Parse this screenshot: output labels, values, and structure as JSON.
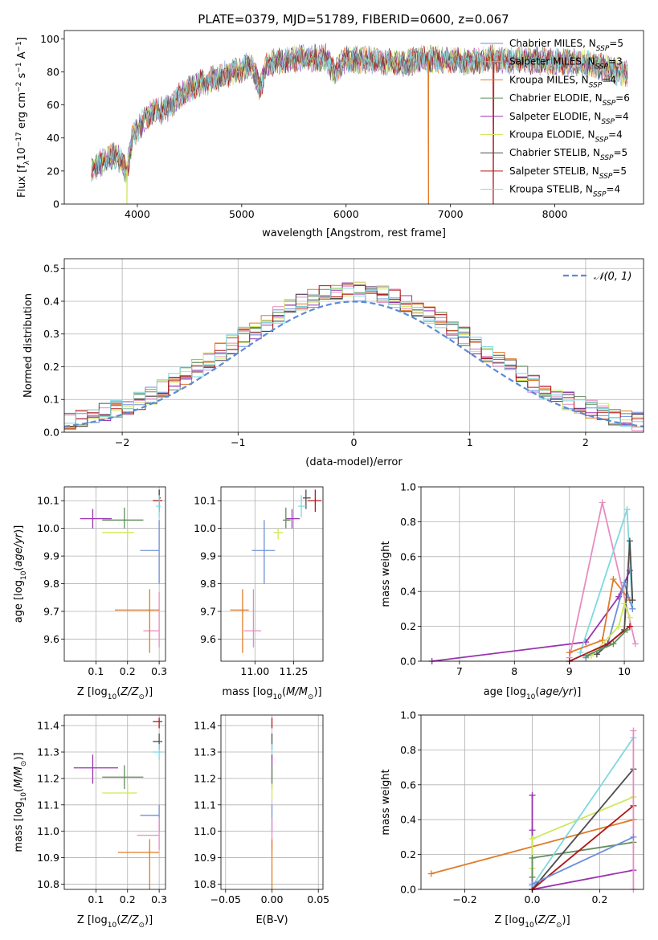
{
  "figure": {
    "title": "PLATE=0379, MJD=51789, FIBERID=0600, z=0.067"
  },
  "colors": {
    "Chabrier MILES": "#6e8fd8",
    "Salpeter MILES": "#e88cc0",
    "Kroupa MILES": "#e07b28",
    "Chabrier ELODIE": "#5f8f5a",
    "Salpeter ELODIE": "#9a33b0",
    "Kroupa ELODIE": "#cfe85a",
    "Chabrier STELIB": "#4d4d4d",
    "Salpeter STELIB": "#b01818",
    "Kroupa STELIB": "#7fd8e0"
  },
  "chart_data": [
    {
      "id": "spectrum",
      "type": "line",
      "title": "PLATE=0379, MJD=51789, FIBERID=0600, z=0.067",
      "xlabel": "wavelength [Angstrom, rest frame]",
      "ylabel": "Flux [f_λ 10^-17 erg cm^-2 s^-1 A^-1]",
      "xlim": [
        3300,
        8850
      ],
      "ylim": [
        0,
        105
      ],
      "xticks": [
        4000,
        5000,
        6000,
        7000,
        8000
      ],
      "yticks": [
        0,
        20,
        40,
        60,
        80,
        100
      ],
      "legend_position": "top-right",
      "grid": false,
      "legend": [
        {
          "name": "Chabrier MILES",
          "label": "Chabrier MILES, N",
          "n": "=5"
        },
        {
          "name": "Salpeter MILES",
          "label": "Salpeter MILES, N",
          "n": "=3"
        },
        {
          "name": "Kroupa MILES",
          "label": "Kroupa MILES, N",
          "n": "=4"
        },
        {
          "name": "Chabrier ELODIE",
          "label": "Chabrier ELODIE, N",
          "n": "=6"
        },
        {
          "name": "Salpeter ELODIE",
          "label": "Salpeter ELODIE, N",
          "n": "=4"
        },
        {
          "name": "Kroupa ELODIE",
          "label": "Kroupa ELODIE, N",
          "n": "=4"
        },
        {
          "name": "Chabrier STELIB",
          "label": "Chabrier STELIB, N",
          "n": "=5"
        },
        {
          "name": "Salpeter STELIB",
          "label": "Salpeter STELIB, N",
          "n": "=5"
        },
        {
          "name": "Kroupa STELIB",
          "label": "Kroupa STELIB, N",
          "n": "=4"
        }
      ],
      "continuum": [
        [
          3560,
          20
        ],
        [
          3700,
          28
        ],
        [
          3800,
          30
        ],
        [
          3900,
          20
        ],
        [
          3950,
          40
        ],
        [
          4050,
          50
        ],
        [
          4150,
          55
        ],
        [
          4300,
          58
        ],
        [
          4400,
          65
        ],
        [
          4500,
          70
        ],
        [
          4650,
          74
        ],
        [
          4800,
          77
        ],
        [
          4900,
          80
        ],
        [
          5000,
          82
        ],
        [
          5100,
          84
        ],
        [
          5170,
          70
        ],
        [
          5250,
          85
        ],
        [
          5400,
          87
        ],
        [
          5600,
          88
        ],
        [
          5800,
          89
        ],
        [
          5890,
          80
        ],
        [
          6000,
          88
        ],
        [
          6200,
          87
        ],
        [
          6400,
          86
        ],
        [
          6563,
          84
        ],
        [
          6700,
          88
        ],
        [
          6900,
          87
        ],
        [
          7000,
          87
        ],
        [
          7200,
          86
        ],
        [
          7400,
          88
        ],
        [
          7600,
          87
        ],
        [
          7800,
          87
        ],
        [
          8000,
          86
        ],
        [
          8200,
          86
        ],
        [
          8400,
          84
        ],
        [
          8600,
          80
        ],
        [
          8700,
          78
        ]
      ],
      "dropouts": [
        {
          "series": "Kroupa ELODIE",
          "x": 3900
        },
        {
          "series": "Kroupa MILES",
          "x": 6790
        },
        {
          "series": "Salpeter STELIB",
          "x": 7410
        }
      ]
    },
    {
      "id": "residuals",
      "type": "line",
      "xlabel": "(data-model)/error",
      "ylabel": "Normed distribution",
      "xlim": [
        -2.5,
        2.5
      ],
      "ylim": [
        0,
        0.53
      ],
      "xticks": [
        -2,
        -1,
        0,
        1,
        2
      ],
      "yticks": [
        0.0,
        0.1,
        0.2,
        0.3,
        0.4,
        0.5
      ],
      "grid": true,
      "legend_position": "top-right",
      "gaussian_label": "𝒩(0, 1)",
      "gaussian": {
        "mean": 0,
        "sigma": 1
      }
    },
    {
      "id": "z-age",
      "type": "scatter",
      "xlabel": "Z [log10(Z/Z⊙)]",
      "ylabel": "age  [log10(age/yr)]",
      "xlim": [
        0.0,
        0.32
      ],
      "ylim": [
        9.52,
        10.15
      ],
      "xticks": [
        0.1,
        0.2,
        0.3
      ],
      "yticks": [
        9.6,
        9.7,
        9.8,
        9.9,
        10.0,
        10.1
      ],
      "grid": true,
      "points": [
        {
          "series": "Salpeter ELODIE",
          "x": 0.09,
          "y": 10.035,
          "xerr": [
            0.05,
            0.15
          ],
          "yerr": [
            10.0,
            10.07
          ]
        },
        {
          "series": "Chabrier ELODIE",
          "x": 0.19,
          "y": 10.03,
          "xerr": [
            0.12,
            0.25
          ],
          "yerr": [
            10.0,
            10.075
          ]
        },
        {
          "series": "Kroupa ELODIE",
          "x": 0.2,
          "y": 9.985,
          "xerr": [
            0.12,
            0.22
          ],
          "yerr": [
            9.96,
            10.0
          ]
        },
        {
          "series": "Salpeter STELIB",
          "x": 0.3,
          "y": 10.1,
          "xerr": [
            0.28,
            0.31
          ],
          "yerr": [
            10.06,
            10.14
          ]
        },
        {
          "series": "Chabrier STELIB",
          "x": 0.3,
          "y": 10.11,
          "xerr": [
            0.3,
            0.305
          ],
          "yerr": [
            10.07,
            10.14
          ]
        },
        {
          "series": "Kroupa STELIB",
          "x": 0.3,
          "y": 10.08,
          "xerr": [
            0.29,
            0.305
          ],
          "yerr": [
            10.04,
            10.12
          ]
        },
        {
          "series": "Chabrier MILES",
          "x": 0.3,
          "y": 9.92,
          "xerr": [
            0.24,
            0.3
          ],
          "yerr": [
            9.8,
            10.03
          ]
        },
        {
          "series": "Salpeter MILES",
          "x": 0.3,
          "y": 9.63,
          "xerr": [
            0.25,
            0.3
          ],
          "yerr": [
            9.57,
            9.77
          ]
        },
        {
          "series": "Kroupa MILES",
          "x": 0.27,
          "y": 9.705,
          "xerr": [
            0.16,
            0.3
          ],
          "yerr": [
            9.55,
            9.78
          ]
        }
      ]
    },
    {
      "id": "mass-age",
      "type": "scatter",
      "xlabel": "mass [log10(M/M⊙)]",
      "ylabel": "",
      "xlim": [
        10.78,
        11.44
      ],
      "ylim": [
        9.52,
        10.15
      ],
      "xticks": [
        11.0,
        11.25
      ],
      "yticks": [
        9.6,
        9.7,
        9.8,
        9.9,
        10.0,
        10.1
      ],
      "grid": true,
      "points": [
        {
          "series": "Salpeter ELODIE",
          "x": 11.24,
          "y": 10.035,
          "xerr": [
            11.2,
            11.29
          ],
          "yerr": [
            10.0,
            10.07
          ]
        },
        {
          "series": "Chabrier ELODIE",
          "x": 11.2,
          "y": 10.03,
          "xerr": [
            11.18,
            11.23
          ],
          "yerr": [
            10.0,
            10.075
          ]
        },
        {
          "series": "Kroupa ELODIE",
          "x": 11.15,
          "y": 9.985,
          "xerr": [
            11.12,
            11.18
          ],
          "yerr": [
            9.96,
            10.0
          ]
        },
        {
          "series": "Salpeter STELIB",
          "x": 11.39,
          "y": 10.1,
          "xerr": [
            11.34,
            11.43
          ],
          "yerr": [
            10.06,
            10.14
          ]
        },
        {
          "series": "Chabrier STELIB",
          "x": 11.33,
          "y": 10.11,
          "xerr": [
            11.31,
            11.36
          ],
          "yerr": [
            10.07,
            10.14
          ]
        },
        {
          "series": "Kroupa STELIB",
          "x": 11.3,
          "y": 10.08,
          "xerr": [
            11.28,
            11.33
          ],
          "yerr": [
            10.04,
            10.12
          ]
        },
        {
          "series": "Chabrier MILES",
          "x": 11.06,
          "y": 9.92,
          "xerr": [
            10.98,
            11.13
          ],
          "yerr": [
            9.8,
            10.03
          ]
        },
        {
          "series": "Salpeter MILES",
          "x": 10.99,
          "y": 9.63,
          "xerr": [
            10.93,
            11.04
          ],
          "yerr": [
            9.57,
            9.78
          ]
        },
        {
          "series": "Kroupa MILES",
          "x": 10.92,
          "y": 9.705,
          "xerr": [
            10.84,
            10.96
          ],
          "yerr": [
            9.55,
            9.78
          ]
        }
      ]
    },
    {
      "id": "age-weight",
      "type": "line",
      "xlabel": "age  [log10(age/yr)]",
      "ylabel": "mass weight",
      "xlim": [
        6.3,
        10.35
      ],
      "ylim": [
        0,
        1.0
      ],
      "xticks": [
        7,
        8,
        9,
        10
      ],
      "yticks": [
        0.0,
        0.2,
        0.4,
        0.6,
        0.8,
        1.0
      ],
      "grid": true,
      "series": [
        {
          "name": "Salpeter ELODIE",
          "x": [
            6.5,
            9.3,
            9.9,
            10.1
          ],
          "y": [
            0.0,
            0.11,
            0.37,
            0.52
          ]
        },
        {
          "name": "Salpeter MILES",
          "x": [
            9.0,
            9.6,
            10.2
          ],
          "y": [
            0.02,
            0.91,
            0.1
          ]
        },
        {
          "name": "Kroupa STELIB",
          "x": [
            9.2,
            10.05,
            10.15
          ],
          "y": [
            0.05,
            0.87,
            0.3
          ]
        },
        {
          "name": "Kroupa MILES",
          "x": [
            9.0,
            9.6,
            9.8,
            10.1
          ],
          "y": [
            0.05,
            0.12,
            0.47,
            0.35
          ]
        },
        {
          "name": "Chabrier MILES",
          "x": [
            9.3,
            9.7,
            10.0,
            10.15
          ],
          "y": [
            0.02,
            0.1,
            0.45,
            0.3
          ]
        },
        {
          "name": "Chabrier STELIB",
          "x": [
            9.5,
            10.0,
            10.1,
            10.15
          ],
          "y": [
            0.04,
            0.18,
            0.69,
            0.35
          ]
        },
        {
          "name": "Kroupa ELODIE",
          "x": [
            9.4,
            9.9,
            10.0,
            10.1
          ],
          "y": [
            0.03,
            0.2,
            0.33,
            0.25
          ]
        },
        {
          "name": "Salpeter STELIB",
          "x": [
            9.0,
            9.7,
            10.1
          ],
          "y": [
            0.0,
            0.1,
            0.2
          ]
        },
        {
          "name": "Chabrier ELODIE",
          "x": [
            9.3,
            9.8,
            10.05
          ],
          "y": [
            0.03,
            0.1,
            0.18
          ]
        }
      ]
    },
    {
      "id": "z-mass",
      "type": "scatter",
      "xlabel": "Z [log10(Z/Z⊙)]",
      "ylabel": "mass [log10(M/M⊙)]",
      "xlim": [
        0.0,
        0.32
      ],
      "ylim": [
        10.78,
        11.44
      ],
      "xticks": [
        0.1,
        0.2,
        0.3
      ],
      "yticks": [
        10.8,
        10.9,
        11.0,
        11.1,
        11.2,
        11.3,
        11.4
      ],
      "grid": true,
      "points": [
        {
          "series": "Salpeter ELODIE",
          "x": 0.09,
          "y": 11.24,
          "xerr": [
            0.03,
            0.17
          ],
          "yerr": [
            11.18,
            11.29
          ]
        },
        {
          "series": "Chabrier ELODIE",
          "x": 0.19,
          "y": 11.205,
          "xerr": [
            0.12,
            0.25
          ],
          "yerr": [
            11.16,
            11.25
          ]
        },
        {
          "series": "Kroupa ELODIE",
          "x": 0.2,
          "y": 11.145,
          "xerr": [
            0.12,
            0.23
          ],
          "yerr": [
            11.12,
            11.18
          ]
        },
        {
          "series": "Salpeter STELIB",
          "x": 0.3,
          "y": 11.415,
          "xerr": [
            0.28,
            0.31
          ],
          "yerr": [
            11.39,
            11.43
          ]
        },
        {
          "series": "Chabrier STELIB",
          "x": 0.3,
          "y": 11.34,
          "xerr": [
            0.28,
            0.31
          ],
          "yerr": [
            11.31,
            11.37
          ]
        },
        {
          "series": "Kroupa STELIB",
          "x": 0.3,
          "y": 11.3,
          "xerr": [
            0.28,
            0.31
          ],
          "yerr": [
            11.27,
            11.33
          ]
        },
        {
          "series": "Chabrier MILES",
          "x": 0.3,
          "y": 11.06,
          "xerr": [
            0.24,
            0.3
          ],
          "yerr": [
            11.0,
            11.1
          ]
        },
        {
          "series": "Salpeter MILES",
          "x": 0.3,
          "y": 10.985,
          "xerr": [
            0.23,
            0.3
          ],
          "yerr": [
            10.93,
            11.05
          ]
        },
        {
          "series": "Kroupa MILES",
          "x": 0.27,
          "y": 10.92,
          "xerr": [
            0.17,
            0.3
          ],
          "yerr": [
            10.78,
            10.97
          ]
        }
      ]
    },
    {
      "id": "ebv-mass",
      "type": "scatter",
      "xlabel": "E(B-V)",
      "ylabel": "",
      "xlim": [
        -0.055,
        0.055
      ],
      "ylim": [
        10.78,
        11.44
      ],
      "xticks": [
        -0.05,
        0.0,
        0.05
      ],
      "yticks": [
        10.8,
        10.9,
        11.0,
        11.1,
        11.2,
        11.3,
        11.4
      ],
      "grid": true,
      "points": [
        {
          "series": "Salpeter STELIB",
          "x": 0.0,
          "y": 11.415,
          "yerr": [
            11.39,
            11.43
          ]
        },
        {
          "series": "Chabrier STELIB",
          "x": 0.0,
          "y": 11.34,
          "yerr": [
            11.31,
            11.37
          ]
        },
        {
          "series": "Kroupa STELIB",
          "x": 0.0,
          "y": 11.3,
          "yerr": [
            11.27,
            11.33
          ]
        },
        {
          "series": "Salpeter ELODIE",
          "x": 0.0,
          "y": 11.24,
          "yerr": [
            11.18,
            11.29
          ]
        },
        {
          "series": "Chabrier ELODIE",
          "x": 0.0,
          "y": 11.205,
          "yerr": [
            11.16,
            11.25
          ]
        },
        {
          "series": "Kroupa ELODIE",
          "x": 0.0,
          "y": 11.145,
          "yerr": [
            11.12,
            11.18
          ]
        },
        {
          "series": "Chabrier MILES",
          "x": 0.0,
          "y": 11.06,
          "yerr": [
            11.0,
            11.1
          ]
        },
        {
          "series": "Salpeter MILES",
          "x": 0.0,
          "y": 10.985,
          "yerr": [
            10.93,
            11.05
          ]
        },
        {
          "series": "Kroupa MILES",
          "x": 0.0,
          "y": 10.92,
          "yerr": [
            10.78,
            10.97
          ]
        }
      ]
    },
    {
      "id": "z-weight",
      "type": "line",
      "xlabel": "Z [log10(Z/Z⊙)]",
      "ylabel": "mass weight",
      "xlim": [
        -0.33,
        0.33
      ],
      "ylim": [
        0,
        1.0
      ],
      "xticks": [
        -0.2,
        0.0,
        0.2
      ],
      "yticks": [
        0.0,
        0.2,
        0.4,
        0.6,
        0.8,
        1.0
      ],
      "grid": true,
      "series": [
        {
          "name": "Kroupa MILES",
          "x": [
            -0.3,
            0.3
          ],
          "y": [
            0.09,
            0.4
          ]
        },
        {
          "name": "Salpeter ELODIE",
          "x": [
            0.0,
            0.0,
            0.0,
            0.3
          ],
          "y": [
            0.54,
            0.34,
            0.0,
            0.11
          ]
        },
        {
          "name": "Kroupa ELODIE",
          "x": [
            0.0,
            0.0,
            0.3
          ],
          "y": [
            0.12,
            0.29,
            0.53
          ]
        },
        {
          "name": "Chabrier ELODIE",
          "x": [
            0.0,
            0.0,
            0.3
          ],
          "y": [
            0.07,
            0.18,
            0.27
          ]
        },
        {
          "name": "Kroupa STELIB",
          "x": [
            0.0,
            0.3
          ],
          "y": [
            0.02,
            0.87
          ]
        },
        {
          "name": "Chabrier STELIB",
          "x": [
            0.0,
            0.3
          ],
          "y": [
            0.0,
            0.69
          ]
        },
        {
          "name": "Salpeter STELIB",
          "x": [
            0.0,
            0.3
          ],
          "y": [
            0.0,
            0.48
          ]
        },
        {
          "name": "Salpeter MILES",
          "x": [
            0.3,
            0.3
          ],
          "y": [
            0.91,
            0.0
          ]
        },
        {
          "name": "Chabrier MILES",
          "x": [
            0.0,
            0.3
          ],
          "y": [
            0.03,
            0.3
          ]
        }
      ]
    }
  ]
}
